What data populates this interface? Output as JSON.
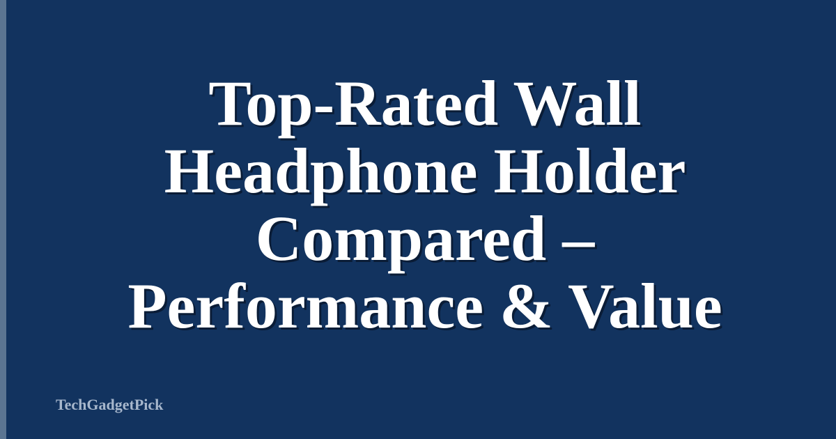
{
  "title": {
    "lines": [
      "Top-Rated Wall",
      "Headphone Holder",
      "Compared –",
      "Performance & Value"
    ]
  },
  "brand": "TechGadgetPick",
  "colors": {
    "background": "#12335f",
    "stripe": "#5b7592",
    "title": "#ffffff",
    "brand": "#a7b7cc"
  }
}
